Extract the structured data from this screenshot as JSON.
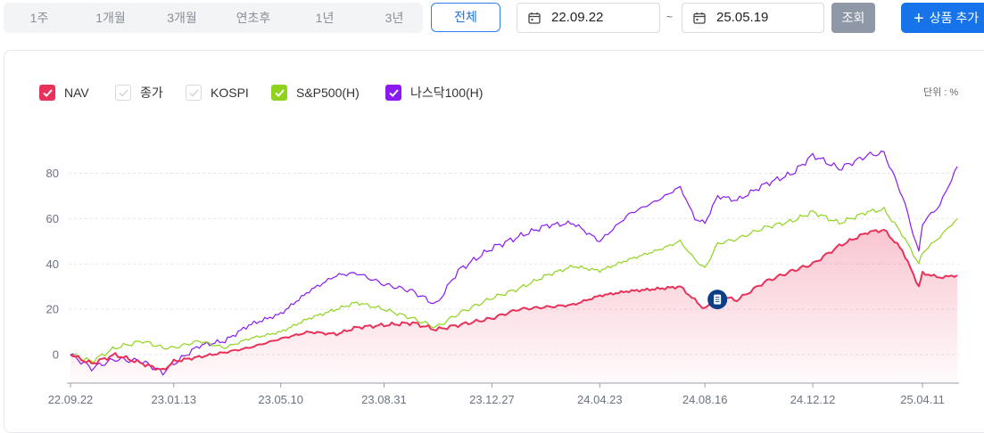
{
  "toolbar": {
    "periods": [
      "1주",
      "1개월",
      "3개월",
      "연초후",
      "1년",
      "3년"
    ],
    "all_label": "전체",
    "start_date": "22.09.22",
    "tilde": "~",
    "end_date": "25.05.19",
    "query_label": "조회",
    "add_label": "상품 추가"
  },
  "legend": [
    {
      "label": "NAV",
      "checked": true,
      "color": "#e8325a"
    },
    {
      "label": "종가",
      "checked": false,
      "color": "#cccccc"
    },
    {
      "label": "KOSPI",
      "checked": false,
      "color": "#cccccc"
    },
    {
      "label": "S&P500(H)",
      "checked": true,
      "color": "#8fd31f"
    },
    {
      "label": "나스닥100(H)",
      "checked": true,
      "color": "#8a1bf0"
    }
  ],
  "unit_label": "단위 : %",
  "chart_data": {
    "type": "line",
    "x_ticks": [
      "22.09.22",
      "23.01.13",
      "23.05.10",
      "23.08.31",
      "23.12.27",
      "24.04.23",
      "24.08.16",
      "24.12.12",
      "25.04.11"
    ],
    "y_ticks": [
      80,
      60,
      40,
      20,
      0
    ],
    "ylim": [
      -12,
      92
    ],
    "grid": true,
    "legend_position": "top-left",
    "marker_date": "24.08.16",
    "series": [
      {
        "name": "NAV",
        "color": "#e8325a",
        "area": true,
        "points": [
          [
            "22.09.22",
            0
          ],
          [
            "22.10.15",
            -4
          ],
          [
            "22.11.10",
            0
          ],
          [
            "22.12.10",
            -4
          ],
          [
            "23.01.01",
            -7
          ],
          [
            "23.01.13",
            -3
          ],
          [
            "23.02.10",
            -1
          ],
          [
            "23.03.10",
            1
          ],
          [
            "23.04.05",
            3
          ],
          [
            "23.05.10",
            7
          ],
          [
            "23.06.10",
            10
          ],
          [
            "23.07.10",
            9
          ],
          [
            "23.08.01",
            12
          ],
          [
            "23.08.31",
            13
          ],
          [
            "23.10.01",
            14
          ],
          [
            "23.10.27",
            11
          ],
          [
            "23.11.20",
            13
          ],
          [
            "23.12.27",
            16
          ],
          [
            "24.01.25",
            20
          ],
          [
            "24.02.25",
            21
          ],
          [
            "24.03.25",
            22
          ],
          [
            "24.04.23",
            26
          ],
          [
            "24.05.25",
            28
          ],
          [
            "24.06.25",
            29
          ],
          [
            "24.07.20",
            30
          ],
          [
            "24.08.05",
            24
          ],
          [
            "24.08.16",
            20
          ],
          [
            "24.08.30",
            26
          ],
          [
            "24.09.20",
            24
          ],
          [
            "24.10.20",
            32
          ],
          [
            "24.11.20",
            37
          ],
          [
            "24.12.12",
            40
          ],
          [
            "25.01.10",
            48
          ],
          [
            "25.02.10",
            54
          ],
          [
            "25.02.28",
            55
          ],
          [
            "25.03.20",
            46
          ],
          [
            "25.04.07",
            30
          ],
          [
            "25.04.11",
            36
          ],
          [
            "25.04.30",
            34
          ],
          [
            "25.05.19",
            35
          ]
        ]
      },
      {
        "name": "S&P500(H)",
        "color": "#8fd31f",
        "area": false,
        "points": [
          [
            "22.09.22",
            0
          ],
          [
            "22.10.15",
            -3
          ],
          [
            "22.11.10",
            3
          ],
          [
            "22.12.10",
            6
          ],
          [
            "23.01.01",
            3
          ],
          [
            "23.01.13",
            3
          ],
          [
            "23.02.10",
            6
          ],
          [
            "23.03.10",
            3
          ],
          [
            "23.04.05",
            7
          ],
          [
            "23.05.10",
            10
          ],
          [
            "23.06.10",
            16
          ],
          [
            "23.07.10",
            20
          ],
          [
            "23.08.01",
            23
          ],
          [
            "23.08.31",
            20
          ],
          [
            "23.10.01",
            16
          ],
          [
            "23.10.27",
            12
          ],
          [
            "23.11.20",
            18
          ],
          [
            "23.12.27",
            25
          ],
          [
            "24.01.25",
            29
          ],
          [
            "24.02.25",
            35
          ],
          [
            "24.03.25",
            39
          ],
          [
            "24.04.23",
            37
          ],
          [
            "24.05.25",
            42
          ],
          [
            "24.06.25",
            46
          ],
          [
            "24.07.20",
            50
          ],
          [
            "24.08.05",
            42
          ],
          [
            "24.08.16",
            38
          ],
          [
            "24.08.30",
            49
          ],
          [
            "24.09.20",
            51
          ],
          [
            "24.10.20",
            56
          ],
          [
            "24.11.20",
            59
          ],
          [
            "24.12.12",
            63
          ],
          [
            "25.01.10",
            58
          ],
          [
            "25.02.10",
            63
          ],
          [
            "25.02.28",
            64
          ],
          [
            "25.03.20",
            53
          ],
          [
            "25.04.07",
            40
          ],
          [
            "25.04.11",
            45
          ],
          [
            "25.04.30",
            52
          ],
          [
            "25.05.19",
            60
          ]
        ]
      },
      {
        "name": "나스닥100(H)",
        "color": "#8a1bf0",
        "area": false,
        "points": [
          [
            "22.09.22",
            0
          ],
          [
            "22.10.15",
            -6
          ],
          [
            "22.11.10",
            -2
          ],
          [
            "22.12.10",
            -3
          ],
          [
            "23.01.01",
            -8
          ],
          [
            "23.01.13",
            -4
          ],
          [
            "23.02.10",
            4
          ],
          [
            "23.03.10",
            6
          ],
          [
            "23.04.05",
            13
          ],
          [
            "23.05.10",
            18
          ],
          [
            "23.06.10",
            28
          ],
          [
            "23.07.10",
            35
          ],
          [
            "23.08.01",
            36
          ],
          [
            "23.08.31",
            31
          ],
          [
            "23.10.01",
            28
          ],
          [
            "23.10.27",
            22
          ],
          [
            "23.11.20",
            37
          ],
          [
            "23.12.27",
            47
          ],
          [
            "24.01.25",
            52
          ],
          [
            "24.02.25",
            57
          ],
          [
            "24.03.25",
            58
          ],
          [
            "24.04.23",
            50
          ],
          [
            "24.05.25",
            62
          ],
          [
            "24.06.25",
            68
          ],
          [
            "24.07.20",
            74
          ],
          [
            "24.08.05",
            60
          ],
          [
            "24.08.16",
            58
          ],
          [
            "24.08.30",
            70
          ],
          [
            "24.09.20",
            68
          ],
          [
            "24.10.20",
            75
          ],
          [
            "24.11.20",
            80
          ],
          [
            "24.12.12",
            88
          ],
          [
            "25.01.10",
            82
          ],
          [
            "25.02.10",
            88
          ],
          [
            "25.02.28",
            89
          ],
          [
            "25.03.20",
            70
          ],
          [
            "25.04.07",
            45
          ],
          [
            "25.04.11",
            58
          ],
          [
            "25.04.30",
            66
          ],
          [
            "25.05.19",
            83
          ]
        ]
      }
    ]
  }
}
